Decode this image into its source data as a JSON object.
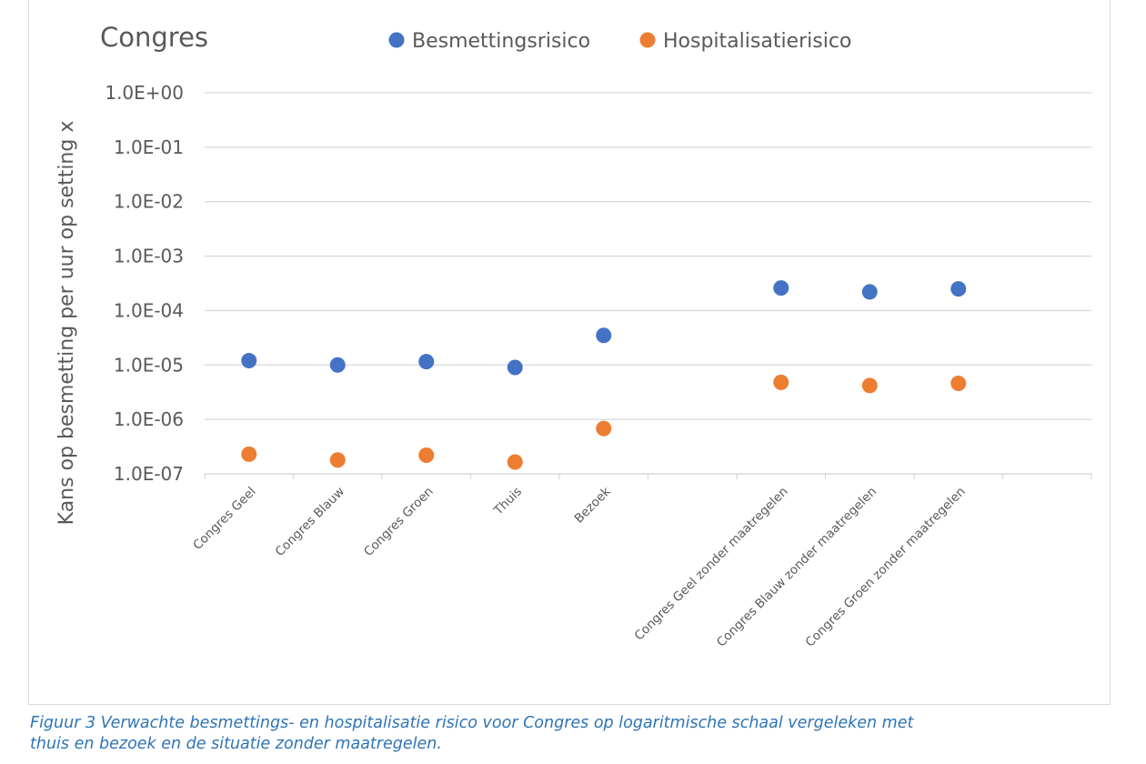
{
  "chart_data": {
    "type": "scatter",
    "title": "Congres",
    "ylabel": "Kans op besmetting per uur op setting x",
    "xlabel": "",
    "yscale": "log",
    "ylim": [
      1e-07,
      1
    ],
    "y_tick_labels": [
      "1.0E+00",
      "1.0E-01",
      "1.0E-02",
      "1.0E-03",
      "1.0E-04",
      "1.0E-05",
      "1.0E-06",
      "1.0E-07"
    ],
    "y_tick_values": [
      1,
      0.1,
      0.01,
      0.001,
      0.0001,
      1e-05,
      1e-06,
      1e-07
    ],
    "grid": true,
    "legend_position": "top",
    "category_slots": 10,
    "categories": [
      {
        "slot": 0,
        "label": "Congres Geel"
      },
      {
        "slot": 1,
        "label": "Congres Blauw"
      },
      {
        "slot": 2,
        "label": "Congres Groen"
      },
      {
        "slot": 3,
        "label": "Thuis"
      },
      {
        "slot": 4,
        "label": "Bezoek"
      },
      {
        "slot": 5,
        "label": ""
      },
      {
        "slot": 6,
        "label": "Congres Geel zonder maatregelen"
      },
      {
        "slot": 7,
        "label": "Congres Blauw zonder maatregelen"
      },
      {
        "slot": 8,
        "label": "Congres Groen zonder maatregelen"
      }
    ],
    "series": [
      {
        "name": "Besmettingsrisico",
        "color": "#4472c4",
        "values": [
          1.2e-05,
          1e-05,
          1.15e-05,
          9e-06,
          3.5e-05,
          null,
          0.00026,
          0.00022,
          0.00025
        ]
      },
      {
        "name": "Hospitalisatierisico",
        "color": "#ed7d31",
        "values": [
          2.3e-07,
          1.8e-07,
          2.2e-07,
          1.65e-07,
          6.8e-07,
          null,
          4.8e-06,
          4.2e-06,
          4.6e-06
        ]
      }
    ]
  },
  "caption": {
    "line1": "Figuur 3 Verwachte besmettings- en hospitalisatie risico voor Congres op logaritmische schaal vergeleken met",
    "line2": "thuis en bezoek en de situatie zonder maatregelen."
  }
}
